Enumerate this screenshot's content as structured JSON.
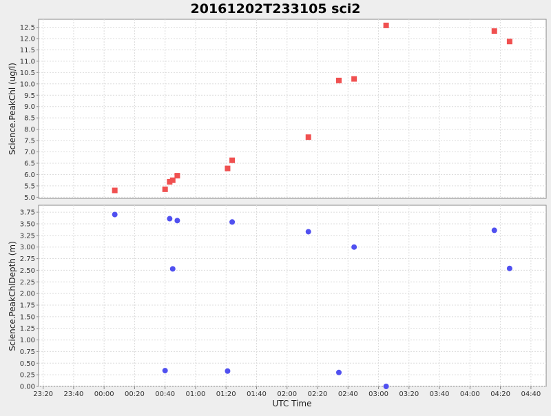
{
  "chart_data": {
    "type": "scatter",
    "title": "20161202T233105 sci2",
    "xlabel": "UTC Time",
    "x_ticks": [
      "23:20",
      "23:40",
      "00:00",
      "00:20",
      "00:40",
      "01:00",
      "01:20",
      "01:40",
      "02:00",
      "02:20",
      "02:40",
      "03:00",
      "03:20",
      "03:40",
      "04:00",
      "04:20",
      "04:40"
    ],
    "x_range": [
      "23:17",
      "04:50"
    ],
    "grid": true,
    "panels": [
      {
        "ylabel": "Science.PeakChl (ug/l)",
        "ylim": [
          4.95,
          12.85
        ],
        "y_ticks": [
          "5.0",
          "5.5",
          "6.0",
          "6.5",
          "7.0",
          "7.5",
          "8.0",
          "8.5",
          "9.0",
          "9.5",
          "10.0",
          "10.5",
          "11.0",
          "11.5",
          "12.0",
          "12.5"
        ],
        "marker": "square",
        "color": "#f05050",
        "points": [
          {
            "x": "00:07",
            "y": 5.3
          },
          {
            "x": "00:40",
            "y": 5.35
          },
          {
            "x": "00:43",
            "y": 5.68
          },
          {
            "x": "00:45",
            "y": 5.75
          },
          {
            "x": "00:48",
            "y": 5.95
          },
          {
            "x": "01:21",
            "y": 6.27
          },
          {
            "x": "01:24",
            "y": 6.63
          },
          {
            "x": "02:14",
            "y": 7.65
          },
          {
            "x": "02:34",
            "y": 10.15
          },
          {
            "x": "02:44",
            "y": 10.22
          },
          {
            "x": "03:05",
            "y": 12.58
          },
          {
            "x": "04:16",
            "y": 12.33
          },
          {
            "x": "04:26",
            "y": 11.87
          }
        ]
      },
      {
        "ylabel": "Science.PeakChlDepth (m)",
        "ylim": [
          0.0,
          3.9
        ],
        "y_ticks": [
          "0.00",
          "0.25",
          "0.50",
          "0.75",
          "1.00",
          "1.25",
          "1.50",
          "1.75",
          "2.00",
          "2.25",
          "2.50",
          "2.75",
          "3.00",
          "3.25",
          "3.50",
          "3.75"
        ],
        "marker": "circle",
        "color": "#5050f0",
        "points": [
          {
            "x": "00:07",
            "y": 3.7
          },
          {
            "x": "00:40",
            "y": 0.34
          },
          {
            "x": "00:43",
            "y": 3.61
          },
          {
            "x": "00:45",
            "y": 2.53
          },
          {
            "x": "00:48",
            "y": 3.57
          },
          {
            "x": "01:21",
            "y": 0.33
          },
          {
            "x": "01:24",
            "y": 3.54
          },
          {
            "x": "02:14",
            "y": 3.33
          },
          {
            "x": "02:34",
            "y": 0.3
          },
          {
            "x": "02:44",
            "y": 3.0
          },
          {
            "x": "03:05",
            "y": 0.0
          },
          {
            "x": "04:16",
            "y": 3.36
          },
          {
            "x": "04:26",
            "y": 2.54
          }
        ]
      }
    ]
  }
}
